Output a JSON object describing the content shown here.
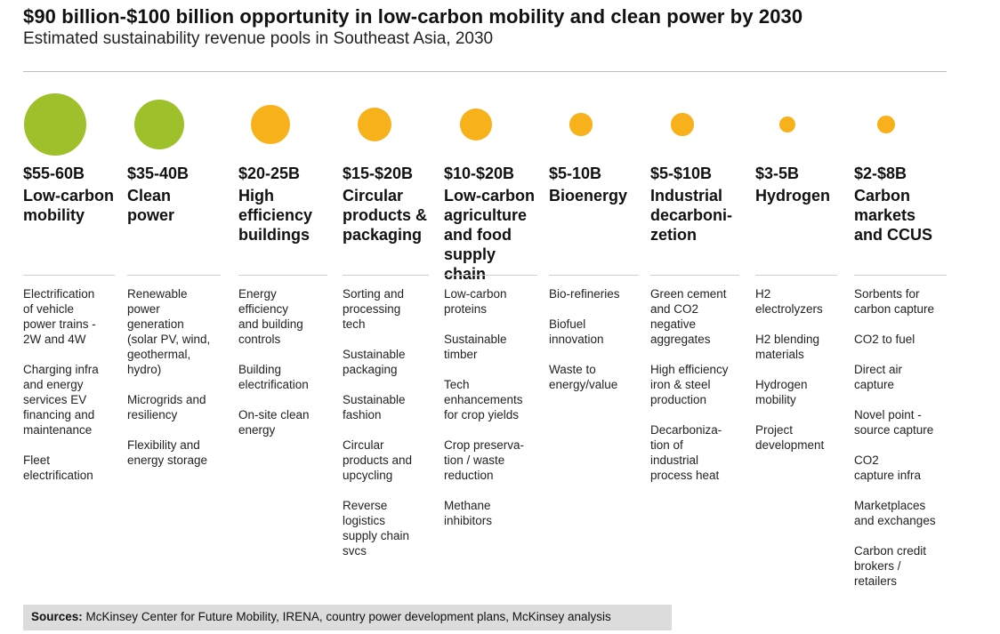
{
  "header": {
    "title": "$90 billion-$100 billion opportunity in low-carbon mobility and clean power by 2030",
    "subtitle": "Estimated sustainability revenue pools in Southeast Asia, 2030"
  },
  "colors": {
    "green": "#9dc02b",
    "amber": "#f6b11b",
    "rule": "#bdbdbd",
    "sources_bg": "#dcdcdc"
  },
  "chart_data": {
    "type": "bubble",
    "unit": "$B revenue pool, 2030",
    "categories": [
      {
        "name": "Low-carbon\nmobility",
        "value_label": "$55-60B",
        "min": 55,
        "max": 60,
        "color": "green",
        "items": [
          "Electrification\nof vehicle\npower trains -\n2W and 4W",
          "Charging infra\nand energy\nservices EV\nfinancing and\nmaintenance",
          "Fleet\nelectrification"
        ]
      },
      {
        "name": "Clean\npower",
        "value_label": "$35-40B",
        "min": 35,
        "max": 40,
        "color": "green",
        "items": [
          "Renewable\npower\ngeneration\n(solar PV, wind,\ngeothermal,\nhydro)",
          "Microgrids and\nresiliency",
          "Flexibility and\nenergy storage"
        ]
      },
      {
        "name": "High\nefficiency\nbuildings",
        "value_label": "$20-25B",
        "min": 20,
        "max": 25,
        "color": "amber",
        "items": [
          "Energy\nefficiency\nand building\ncontrols",
          "Building\nelectrification",
          "On-site clean\nenergy"
        ]
      },
      {
        "name": "Circular\nproducts &\npackaging",
        "value_label": "$15-$20B",
        "min": 15,
        "max": 20,
        "color": "amber",
        "items": [
          "Sorting and\nprocessing\ntech",
          "Sustainable\npackaging",
          "Sustainable\nfashion",
          "Circular\nproducts and\nupcycling",
          "Reverse\nlogistics\nsupply chain\nsvcs"
        ]
      },
      {
        "name": "Low-carbon\nagriculture\nand food\nsupply chain",
        "value_label": "$10-$20B",
        "min": 10,
        "max": 20,
        "color": "amber",
        "items": [
          "Low-carbon\nproteins",
          "Sustainable\ntimber",
          "Tech\nenhancements\nfor crop yields",
          "Crop preserva-\ntion / waste\nreduction",
          "Methane\ninhibitors"
        ]
      },
      {
        "name": "Bioenergy",
        "value_label": "$5-10B",
        "min": 5,
        "max": 10,
        "color": "amber",
        "items": [
          "Bio-refineries",
          "Biofuel\ninnovation",
          "Waste to\nenergy/value"
        ]
      },
      {
        "name": "Industrial\ndecarboni-\nzetion",
        "value_label": "$5-$10B",
        "min": 5,
        "max": 10,
        "color": "amber",
        "items": [
          "Green cement\nand CO2\nnegative\naggregates",
          "High efficiency\niron & steel\nproduction",
          "Decarboniza-\ntion of\nindustrial\nprocess heat"
        ]
      },
      {
        "name": "Hydrogen",
        "value_label": "$3-5B",
        "min": 3,
        "max": 5,
        "color": "amber",
        "items": [
          "H2\nelectrolyzers",
          "H2 blending\nmaterials",
          "Hydrogen\nmobility",
          "Project\ndevelopment"
        ]
      },
      {
        "name": "Carbon\nmarkets\nand CCUS",
        "value_label": "$2-$8B",
        "min": 2,
        "max": 8,
        "color": "amber",
        "items": [
          "Sorbents for\ncarbon capture",
          "CO2 to fuel",
          "Direct air\ncapture",
          "Novel point -\nsource capture",
          "CO2\ncapture infra",
          "Marketplaces\nand exchanges",
          "Carbon credit\nbrokers /\nretailers"
        ]
      }
    ]
  },
  "footer": {
    "sources_label": "Sources:",
    "sources_text": "McKinsey Center for Future Mobility, IRENA, country power development plans, McKinsey analysis"
  }
}
